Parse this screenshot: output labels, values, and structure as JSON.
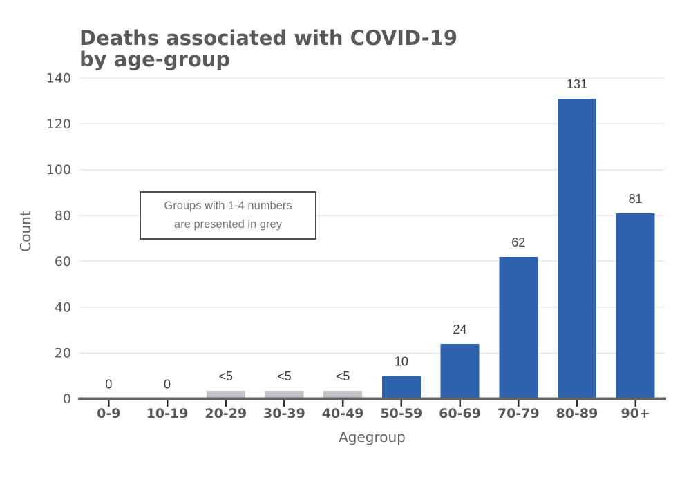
{
  "chart_data": {
    "type": "bar",
    "title_lines": [
      "Deaths associated with COVID-19",
      "by age-group"
    ],
    "xlabel": "Agegroup",
    "ylabel": "Count",
    "ylim": [
      0,
      140
    ],
    "yticks": [
      0,
      20,
      40,
      60,
      80,
      100,
      120,
      140
    ],
    "grid": "horizontal-only",
    "legend": "none",
    "categories": [
      "0-9",
      "10-19",
      "20-29",
      "30-39",
      "40-49",
      "50-59",
      "60-69",
      "70-79",
      "80-89",
      "90+"
    ],
    "values_display": [
      "0",
      "0",
      "<5",
      "<5",
      "<5",
      "10",
      "24",
      "62",
      "131",
      "81"
    ],
    "values_plotted": [
      0,
      0,
      3.5,
      3.5,
      3.5,
      10,
      24,
      62,
      131,
      81
    ],
    "bar_palette": [
      "none",
      "none",
      "grey",
      "grey",
      "grey",
      "blue",
      "blue",
      "blue",
      "blue",
      "blue"
    ],
    "annotation": {
      "lines": [
        "Groups with 1-4 numbers",
        "are presented in grey"
      ]
    },
    "colors": {
      "bar_blue": "#2e62ac",
      "bar_grey": "#c5c5c9",
      "gridline": "#e9e9ee",
      "axis_line": "#636363",
      "tick_mark": "#2f2f2f",
      "title_text": "#595959",
      "axis_text": "#595959",
      "value_label_text": "#3d3d3d",
      "annotation_text": "#757575",
      "annotation_border": "#4f4f4f"
    }
  }
}
